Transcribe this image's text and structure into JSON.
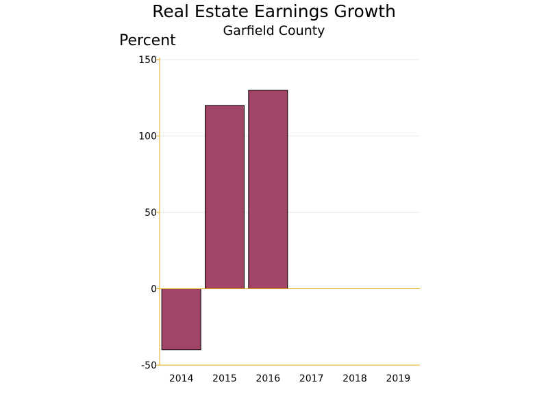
{
  "chart_data": {
    "type": "bar",
    "title": "Real Estate Earnings Growth",
    "subtitle": "Garfield County",
    "xlabel": "",
    "ylabel": "Percent",
    "categories": [
      "2014",
      "2015",
      "2016",
      "2017",
      "2018",
      "2019"
    ],
    "values": [
      -40,
      120,
      130,
      null,
      null,
      null
    ],
    "ylim": [
      -50,
      150
    ],
    "yticks": [
      -50,
      0,
      50,
      100,
      150
    ],
    "grid": true,
    "colors": {
      "bar_fill": "#a04468",
      "bar_stroke": "#000000",
      "axis": "#e6a817",
      "grid": "#e6e6e6"
    }
  }
}
